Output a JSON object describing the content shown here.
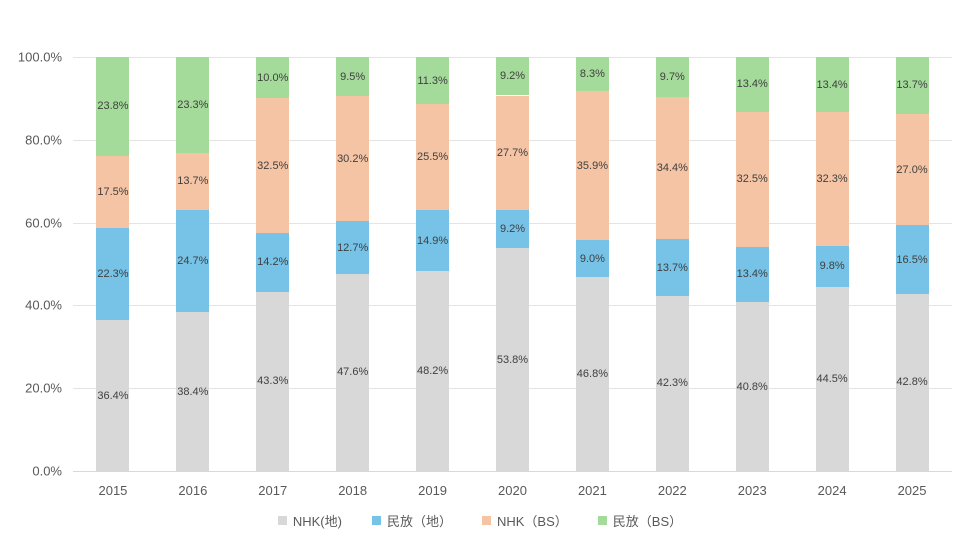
{
  "chart_data": {
    "type": "bar",
    "subtype": "stacked-100-percent-column",
    "title": "",
    "categories": [
      "2015",
      "2016",
      "2017",
      "2018",
      "2019",
      "2020",
      "2021",
      "2022",
      "2023",
      "2024",
      "2025"
    ],
    "series": [
      {
        "name": "NHK(地)",
        "color": "#d8d8d8",
        "values": [
          36.4,
          38.4,
          43.3,
          47.6,
          48.2,
          53.8,
          46.8,
          42.3,
          40.8,
          44.5,
          42.8
        ]
      },
      {
        "name": "民放（地）",
        "color": "#76c3e7",
        "values": [
          22.3,
          24.7,
          14.2,
          12.7,
          14.9,
          9.2,
          9.0,
          13.7,
          13.4,
          9.8,
          16.5
        ]
      },
      {
        "name": "NHK（BS）",
        "color": "#f5c4a4",
        "values": [
          17.5,
          13.7,
          32.5,
          30.2,
          25.5,
          27.7,
          35.9,
          34.4,
          32.5,
          32.3,
          27.0
        ]
      },
      {
        "name": "民放（BS）",
        "color": "#a4db9a",
        "values": [
          23.8,
          23.3,
          10.0,
          9.5,
          11.3,
          9.2,
          8.3,
          9.7,
          13.4,
          13.4,
          13.7
        ]
      }
    ],
    "y_axis": {
      "min": 0,
      "max": 100,
      "tick_step": 20,
      "tick_labels": [
        "0.0%",
        "20.0%",
        "40.0%",
        "60.0%",
        "80.0%",
        "100.0%"
      ],
      "grid": true
    },
    "data_labels": true,
    "data_label_format": "one-decimal-percent",
    "legend_position": "bottom",
    "legend": [
      {
        "label": "NHK(地)",
        "color": "#d8d8d8"
      },
      {
        "label": "民放（地）",
        "color": "#76c3e7"
      },
      {
        "label": "NHK（BS）",
        "color": "#f5c4a4"
      },
      {
        "label": "民放（BS）",
        "color": "#a4db9a"
      }
    ]
  },
  "colors": {
    "background": "#ffffff",
    "gridline": "#e4e4e4",
    "axis_line": "#d9d9d9",
    "data_label_text": "#3f3f3f",
    "axis_text": "#595959"
  }
}
